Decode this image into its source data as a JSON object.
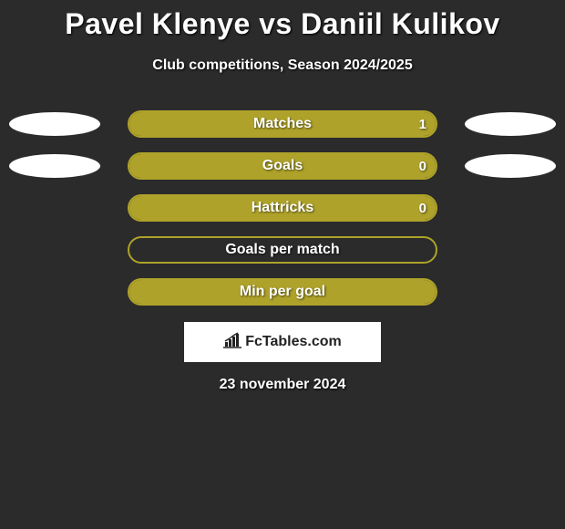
{
  "background_color": "#2b2b2b",
  "title": "Pavel Klenye vs Daniil Kulikov",
  "title_color": "#ffffff",
  "title_fontsize": 32,
  "subtitle": "Club competitions, Season 2024/2025",
  "subtitle_color": "#ffffff",
  "subtitle_fontsize": 16,
  "ellipse_color": "#ffffff",
  "rows": [
    {
      "label": "Matches",
      "value_right": "1",
      "show_left_ellipse": true,
      "show_right_ellipse": true,
      "border_color": "#aea22a",
      "fill_left_color": "#aea22a",
      "fill_left_pct": 0,
      "fill_right_color": "#aea22a",
      "fill_right_pct": 100
    },
    {
      "label": "Goals",
      "value_right": "0",
      "show_left_ellipse": true,
      "show_right_ellipse": true,
      "border_color": "#aea22a",
      "fill_left_color": "#aea22a",
      "fill_left_pct": 0,
      "fill_right_color": "#aea22a",
      "fill_right_pct": 100
    },
    {
      "label": "Hattricks",
      "value_right": "0",
      "show_left_ellipse": false,
      "show_right_ellipse": false,
      "border_color": "#aea22a",
      "fill_left_color": "#aea22a",
      "fill_left_pct": 0,
      "fill_right_color": "#aea22a",
      "fill_right_pct": 100
    },
    {
      "label": "Goals per match",
      "value_right": "",
      "show_left_ellipse": false,
      "show_right_ellipse": false,
      "border_color": "#aea22a",
      "fill_left_color": "#aea22a",
      "fill_left_pct": 0,
      "fill_right_color": "#aea22a",
      "fill_right_pct": 0
    },
    {
      "label": "Min per goal",
      "value_right": "",
      "show_left_ellipse": false,
      "show_right_ellipse": false,
      "border_color": "#aea22a",
      "fill_left_color": "#aea22a",
      "fill_left_pct": 0,
      "fill_right_color": "#aea22a",
      "fill_right_pct": 100
    }
  ],
  "logo": {
    "text": "FcTables.com",
    "icon_color": "#222222",
    "bg_color": "#ffffff"
  },
  "date": "23 november 2024",
  "date_color": "#ffffff",
  "date_fontsize": 16
}
